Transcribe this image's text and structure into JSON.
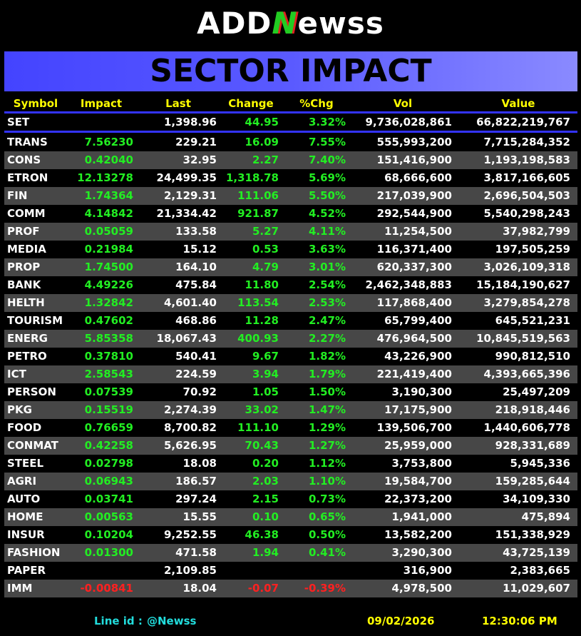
{
  "logo": {
    "left": "ADD",
    "mark": "N",
    "right": "ewss"
  },
  "title": "SECTOR IMPACT",
  "table": {
    "columns": [
      "Symbol",
      "Impact",
      "Last",
      "Change",
      "%Chg",
      "Vol",
      "Value"
    ],
    "index_row": [
      "SET",
      null,
      "1,398.96",
      "44.95",
      "3.32%",
      "9,736,028,861",
      "66,822,219,767"
    ],
    "rows": [
      [
        "TRANS",
        "7.56230",
        "229.21",
        "16.09",
        "7.55%",
        "555,993,200",
        "7,715,284,352"
      ],
      [
        "CONS",
        "0.42040",
        "32.95",
        "2.27",
        "7.40%",
        "151,416,900",
        "1,193,198,583"
      ],
      [
        "ETRON",
        "12.13278",
        "24,499.35",
        "1,318.78",
        "5.69%",
        "68,666,600",
        "3,817,166,605"
      ],
      [
        "FIN",
        "1.74364",
        "2,129.31",
        "111.06",
        "5.50%",
        "217,039,900",
        "2,696,504,503"
      ],
      [
        "COMM",
        "4.14842",
        "21,334.42",
        "921.87",
        "4.52%",
        "292,544,900",
        "5,540,298,243"
      ],
      [
        "PROF",
        "0.05059",
        "133.58",
        "5.27",
        "4.11%",
        "11,254,500",
        "37,982,799"
      ],
      [
        "MEDIA",
        "0.21984",
        "15.12",
        "0.53",
        "3.63%",
        "116,371,400",
        "197,505,259"
      ],
      [
        "PROP",
        "1.74500",
        "164.10",
        "4.79",
        "3.01%",
        "620,337,300",
        "3,026,109,318"
      ],
      [
        "BANK",
        "4.49226",
        "475.84",
        "11.80",
        "2.54%",
        "2,462,348,883",
        "15,184,190,627"
      ],
      [
        "HELTH",
        "1.32842",
        "4,601.40",
        "113.54",
        "2.53%",
        "117,868,400",
        "3,279,854,278"
      ],
      [
        "TOURISM",
        "0.47602",
        "468.86",
        "11.28",
        "2.47%",
        "65,799,400",
        "645,521,231"
      ],
      [
        "ENERG",
        "5.85358",
        "18,067.43",
        "400.93",
        "2.27%",
        "476,964,500",
        "10,845,519,563"
      ],
      [
        "PETRO",
        "0.37810",
        "540.41",
        "9.67",
        "1.82%",
        "43,226,900",
        "990,812,510"
      ],
      [
        "ICT",
        "2.58543",
        "224.59",
        "3.94",
        "1.79%",
        "221,419,400",
        "4,393,665,396"
      ],
      [
        "PERSON",
        "0.07539",
        "70.92",
        "1.05",
        "1.50%",
        "3,190,300",
        "25,497,209"
      ],
      [
        "PKG",
        "0.15519",
        "2,274.39",
        "33.02",
        "1.47%",
        "17,175,900",
        "218,918,446"
      ],
      [
        "FOOD",
        "0.76659",
        "8,700.82",
        "111.10",
        "1.29%",
        "139,506,700",
        "1,440,606,778"
      ],
      [
        "CONMAT",
        "0.42258",
        "5,626.95",
        "70.43",
        "1.27%",
        "25,959,000",
        "928,331,689"
      ],
      [
        "STEEL",
        "0.02798",
        "18.08",
        "0.20",
        "1.12%",
        "3,753,800",
        "5,945,336"
      ],
      [
        "AGRI",
        "0.06943",
        "186.57",
        "2.03",
        "1.10%",
        "19,584,700",
        "159,285,644"
      ],
      [
        "AUTO",
        "0.03741",
        "297.24",
        "2.15",
        "0.73%",
        "22,373,200",
        "34,109,330"
      ],
      [
        "HOME",
        "0.00563",
        "15.55",
        "0.10",
        "0.65%",
        "1,941,000",
        "475,894"
      ],
      [
        "INSUR",
        "0.10204",
        "9,252.55",
        "46.38",
        "0.50%",
        "13,582,200",
        "151,338,929"
      ],
      [
        "FASHION",
        "0.01300",
        "471.58",
        "1.94",
        "0.41%",
        "3,290,300",
        "43,725,139"
      ],
      [
        "PAPER",
        null,
        "2,109.85",
        null,
        null,
        "316,900",
        "2,383,665"
      ],
      [
        "IMM",
        "-0.00841",
        "18.04",
        "-0.07",
        "-0.39%",
        "4,978,500",
        "11,029,607"
      ]
    ]
  },
  "footer": {
    "line_label": "Line id  :",
    "line_id": "@Newss",
    "date": "09/02/2026",
    "time": "12:30:06 PM"
  }
}
